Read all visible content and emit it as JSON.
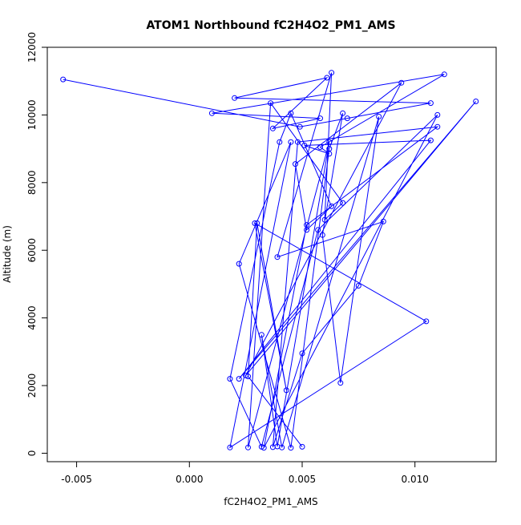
{
  "chart_data": {
    "type": "line",
    "title": "ATOM1 Northbound fC2H4O2_PM1_AMS",
    "xlabel": "fC2H4O2_PM1_AMS",
    "ylabel": "Altitude (m)",
    "xlim": [
      -0.0063,
      0.0136
    ],
    "ylim": [
      -250,
      12000
    ],
    "x_ticks": [
      -0.005,
      0.0,
      0.005,
      0.01
    ],
    "x_tick_labels": [
      "-0.005",
      "0.000",
      "0.005",
      "0.010"
    ],
    "y_ticks": [
      0,
      2000,
      4000,
      6000,
      8000,
      10000,
      12000
    ],
    "y_tick_labels": [
      "0",
      "2000",
      "4000",
      "6000",
      "8000",
      "10000",
      "12000"
    ],
    "grid": false,
    "legend": "none",
    "color": "#0000ff",
    "marker": "open-circle",
    "series": [
      {
        "x": [
          0.005,
          0.0026,
          0.003,
          0.0043,
          0.0029,
          0.0105,
          0.0018,
          0.0045,
          0.0022,
          0.0045,
          0.0062,
          0.0068,
          0.0059,
          0.0067,
          0.0084,
          0.0041,
          0.0032,
          0.0039,
          0.0062,
          0.0026,
          0.0036,
          0.0068,
          0.006,
          0.0063,
          0.0039,
          0.0086,
          0.0075,
          0.005,
          0.0037,
          0.0048,
          0.011,
          0.0052,
          0.0033,
          0.011,
          0.0057,
          0.0032,
          0.0018,
          0.004,
          0.0045,
          0.0063,
          0.0052,
          0.0047,
          0.0094,
          0.0025,
          0.0127,
          0.0022,
          0.0107,
          0.0051,
          0.0062,
          0.0058,
          0.0113,
          0.001,
          0.0058,
          0.0037,
          0.0061,
          0.002,
          0.0107,
          0.007,
          0.0049,
          -0.0056
        ],
        "y": [
          190,
          2270,
          6800,
          1860,
          6800,
          3900,
          170,
          9200,
          5600,
          160,
          9000,
          10050,
          6450,
          2080,
          9950,
          170,
          3500,
          200,
          9200,
          170,
          10350,
          7400,
          6900,
          11250,
          5800,
          6850,
          4950,
          2950,
          180,
          9200,
          9650,
          6750,
          160,
          10000,
          6600,
          190,
          2200,
          9200,
          10050,
          7300,
          6600,
          8550,
          10950,
          2300,
          10400,
          2200,
          9250,
          9100,
          8850,
          9050,
          11200,
          10050,
          9900,
          9600,
          11100,
          10500,
          10350,
          9900,
          9650,
          11050
        ]
      }
    ]
  }
}
